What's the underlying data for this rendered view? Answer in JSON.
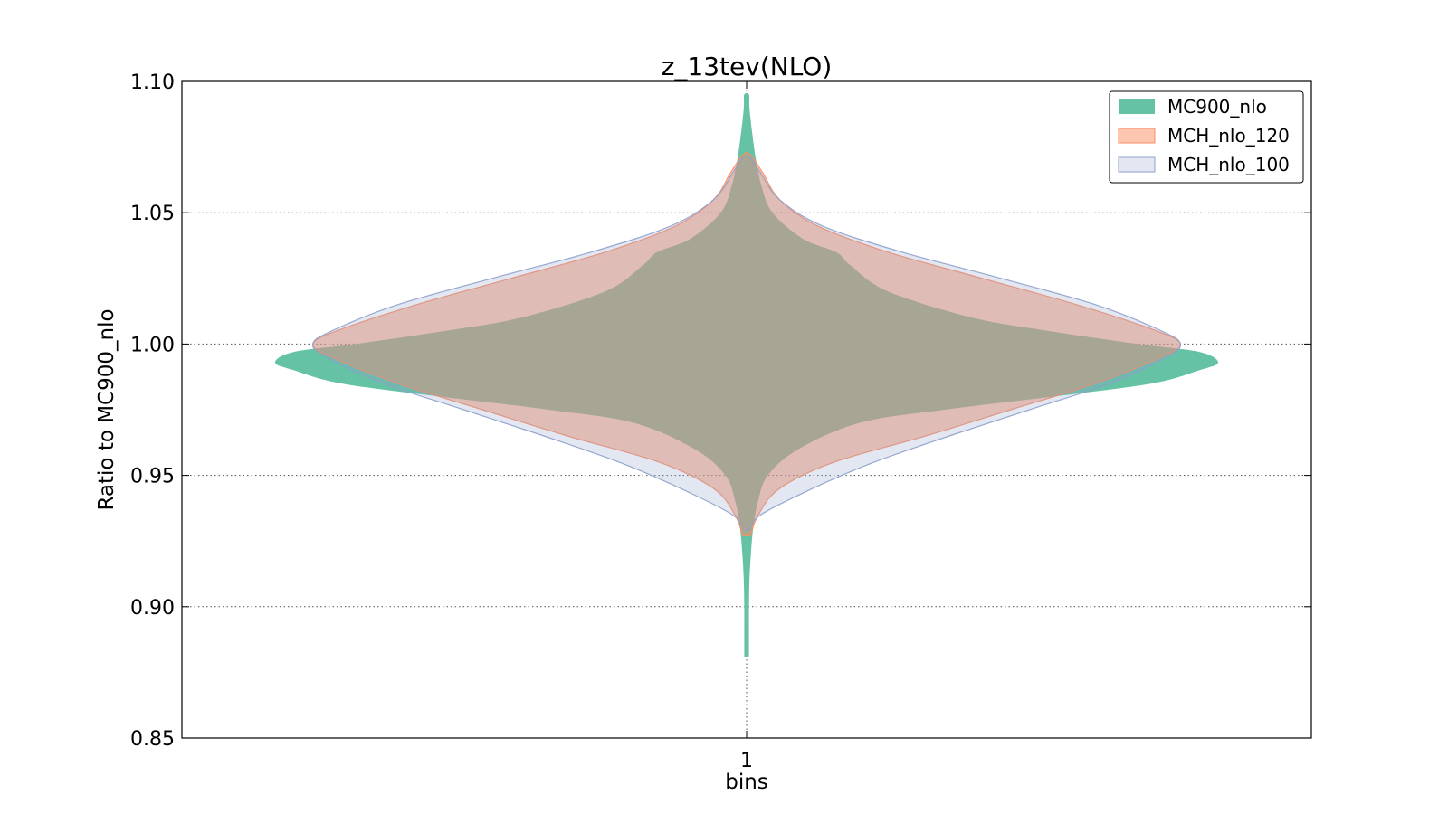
{
  "chart_data": {
    "type": "violin",
    "title": "z_13tev(NLO)",
    "xlabel": "bins",
    "ylabel": "Ratio to MC900_nlo",
    "ylim": [
      0.85,
      1.1
    ],
    "yticks": [
      "0.85",
      "0.90",
      "0.95",
      "1.00",
      "1.05",
      "1.10"
    ],
    "categories": [
      "1"
    ],
    "grid": true,
    "legend_position": "top-right",
    "series": [
      {
        "name": "MC900_nlo",
        "color": "#66c2a5",
        "opacity": 1.0,
        "profile": [
          [
            0.881,
            0.005
          ],
          [
            0.89,
            0.005
          ],
          [
            0.9,
            0.005
          ],
          [
            0.91,
            0.006
          ],
          [
            0.92,
            0.009
          ],
          [
            0.93,
            0.014
          ],
          [
            0.94,
            0.024
          ],
          [
            0.95,
            0.045
          ],
          [
            0.96,
            0.11
          ],
          [
            0.97,
            0.24
          ],
          [
            0.975,
            0.42
          ],
          [
            0.98,
            0.65
          ],
          [
            0.985,
            0.86
          ],
          [
            0.99,
            0.96
          ],
          [
            0.993,
            1.0
          ],
          [
            0.997,
            0.96
          ],
          [
            1.0,
            0.83
          ],
          [
            1.005,
            0.64
          ],
          [
            1.01,
            0.48
          ],
          [
            1.02,
            0.3
          ],
          [
            1.03,
            0.22
          ],
          [
            1.035,
            0.19
          ],
          [
            1.04,
            0.12
          ],
          [
            1.05,
            0.055
          ],
          [
            1.06,
            0.032
          ],
          [
            1.07,
            0.02
          ],
          [
            1.08,
            0.012
          ],
          [
            1.09,
            0.006
          ],
          [
            1.095,
            0.005
          ]
        ]
      },
      {
        "name": "MCH_nlo_120",
        "color": "#fc8d62",
        "opacity": 0.5,
        "profile": [
          [
            0.927,
            0.008
          ],
          [
            0.935,
            0.025
          ],
          [
            0.945,
            0.07
          ],
          [
            0.955,
            0.185
          ],
          [
            0.965,
            0.38
          ],
          [
            0.975,
            0.56
          ],
          [
            0.985,
            0.74
          ],
          [
            0.995,
            0.88
          ],
          [
            1.0,
            0.92
          ],
          [
            1.005,
            0.87
          ],
          [
            1.015,
            0.7
          ],
          [
            1.025,
            0.5
          ],
          [
            1.035,
            0.3
          ],
          [
            1.045,
            0.15
          ],
          [
            1.055,
            0.07
          ],
          [
            1.065,
            0.035
          ],
          [
            1.072,
            0.008
          ]
        ]
      },
      {
        "name": "MCH_nlo_100",
        "color": "#8da0cb",
        "opacity": 0.25,
        "profile": [
          [
            0.929,
            0.006
          ],
          [
            0.935,
            0.03
          ],
          [
            0.945,
            0.14
          ],
          [
            0.955,
            0.27
          ],
          [
            0.965,
            0.43
          ],
          [
            0.975,
            0.6
          ],
          [
            0.985,
            0.77
          ],
          [
            0.995,
            0.89
          ],
          [
            1.0,
            0.92
          ],
          [
            1.005,
            0.88
          ],
          [
            1.015,
            0.74
          ],
          [
            1.025,
            0.54
          ],
          [
            1.035,
            0.33
          ],
          [
            1.045,
            0.16
          ],
          [
            1.055,
            0.07
          ],
          [
            1.065,
            0.03
          ],
          [
            1.071,
            0.008
          ]
        ]
      }
    ]
  }
}
